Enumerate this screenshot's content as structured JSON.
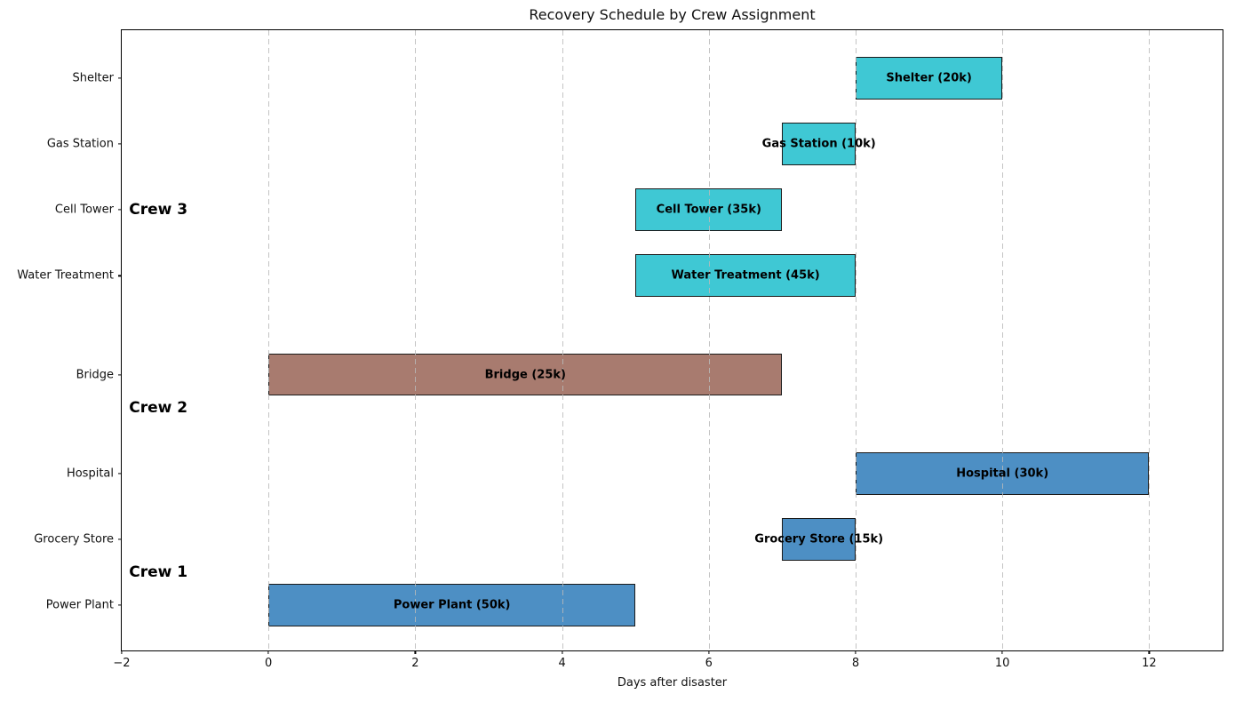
{
  "chart_data": {
    "type": "bar",
    "orientation": "horizontal",
    "title": "Recovery Schedule by Crew Assignment",
    "xlabel": "Days after disaster",
    "xlim": [
      -2,
      13
    ],
    "ylim": [
      -0.69,
      8.73
    ],
    "bar_height": 0.645,
    "edge_color": "#1a1a1a",
    "grid": {
      "axis": "x",
      "style": "dashed",
      "color": "#bcbcbc"
    },
    "legend": "none",
    "xticks": [
      {
        "value": -2,
        "label": "−2"
      },
      {
        "value": 0,
        "label": "0"
      },
      {
        "value": 2,
        "label": "2"
      },
      {
        "value": 4,
        "label": "4"
      },
      {
        "value": 6,
        "label": "6"
      },
      {
        "value": 8,
        "label": "8"
      },
      {
        "value": 10,
        "label": "10"
      },
      {
        "value": 12,
        "label": "12"
      }
    ],
    "bars": [
      {
        "task": "Shelter",
        "label": "Shelter (20k)",
        "start": 8,
        "end": 10,
        "y": 8,
        "color": "#3fc8d4",
        "crew": "Crew 3"
      },
      {
        "task": "Gas Station",
        "label": "Gas Station (10k)",
        "start": 7,
        "end": 8,
        "y": 7,
        "color": "#3fc8d4",
        "crew": "Crew 3"
      },
      {
        "task": "Cell Tower",
        "label": "Cell Tower (35k)",
        "start": 5,
        "end": 7,
        "y": 6,
        "color": "#3fc8d4",
        "crew": "Crew 3"
      },
      {
        "task": "Water Treatment",
        "label": "Water Treatment (45k)",
        "start": 5,
        "end": 8,
        "y": 5,
        "color": "#3fc8d4",
        "crew": "Crew 3"
      },
      {
        "task": "Bridge",
        "label": "Bridge (25k)",
        "start": 0,
        "end": 7,
        "y": 3.5,
        "color": "#a87b6f",
        "crew": "Crew 2"
      },
      {
        "task": "Hospital",
        "label": "Hospital (30k)",
        "start": 8,
        "end": 12,
        "y": 2,
        "color": "#4d8fc4",
        "crew": "Crew 1"
      },
      {
        "task": "Grocery Store",
        "label": "Grocery Store (15k)",
        "start": 7,
        "end": 8,
        "y": 1,
        "color": "#4d8fc4",
        "crew": "Crew 1"
      },
      {
        "task": "Power Plant",
        "label": "Power Plant (50k)",
        "start": 0,
        "end": 5,
        "y": 0,
        "color": "#4d8fc4",
        "crew": "Crew 1"
      }
    ],
    "annotations": [
      {
        "text": "Crew 1",
        "x": -1.9,
        "y": 0.5
      },
      {
        "text": "Crew 2",
        "x": -1.9,
        "y": 3.0
      },
      {
        "text": "Crew 3",
        "x": -1.9,
        "y": 6.0
      }
    ]
  }
}
